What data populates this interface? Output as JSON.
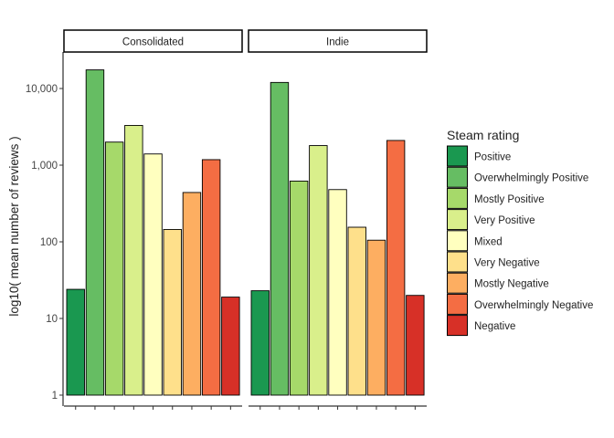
{
  "chart_data": {
    "type": "bar",
    "ylabel": "log10( mean number of reviews )",
    "y_scale": "log10",
    "ylim": [
      1,
      25000
    ],
    "y_ticks": [
      {
        "value": 1,
        "label": "1"
      },
      {
        "value": 10,
        "label": "10"
      },
      {
        "value": 100,
        "label": "100"
      },
      {
        "value": 1000,
        "label": "1,000"
      },
      {
        "value": 10000,
        "label": "10,000"
      }
    ],
    "categories": [
      "Positive",
      "Overwhelmingly Positive",
      "Mostly Positive",
      "Very Positive",
      "Mixed",
      "Very Negative",
      "Mostly Negative",
      "Overwhelmingly Negative",
      "Negative"
    ],
    "colors": [
      "#1a9850",
      "#66bd63",
      "#a6d96a",
      "#d9ef8b",
      "#ffffbf",
      "#fee08b",
      "#fdae61",
      "#f46d43",
      "#d73027"
    ],
    "legend": {
      "title": "Steam rating",
      "position": "right"
    },
    "grid": false,
    "panels": [
      {
        "name": "Consolidated",
        "values": [
          24,
          17500,
          2000,
          3300,
          1400,
          145,
          440,
          1180,
          19
        ]
      },
      {
        "name": "Indie",
        "values": [
          23,
          12000,
          620,
          1800,
          480,
          155,
          105,
          2100,
          20
        ]
      }
    ]
  }
}
